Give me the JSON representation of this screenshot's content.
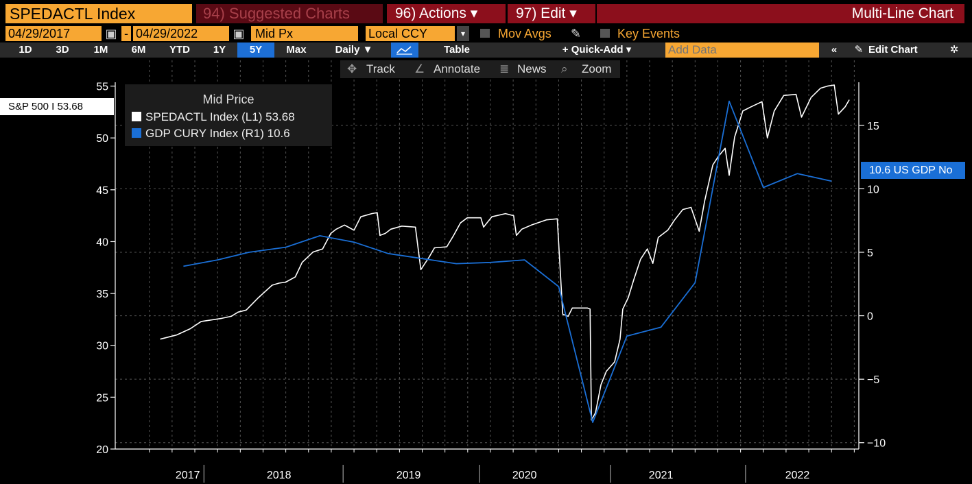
{
  "toolbar": {
    "ticker": "SPEDACTL Index",
    "suggested": "94) Suggested Charts",
    "actions": "96) Actions ▾",
    "edit": "97) Edit ▾",
    "title": "Multi-Line Chart"
  },
  "controls": {
    "start_date": "04/29/2017",
    "end_date": "04/29/2022",
    "dash": "-",
    "field": "Mid Px",
    "currency": "Local CCY",
    "mov_avgs": "Mov Avgs",
    "key_events": "Key Events"
  },
  "ranges": {
    "items": [
      "1D",
      "3D",
      "1M",
      "6M",
      "YTD",
      "1Y",
      "5Y",
      "Max"
    ],
    "selected": "5Y",
    "frequency": "Daily ▼",
    "table": "Table",
    "quick_add": "+ Quick-Add ▾",
    "add_data_placeholder": "Add Data",
    "edit_chart": "Edit Chart"
  },
  "tools": {
    "track": "Track",
    "annotate": "Annotate",
    "news": "News",
    "zoom": "Zoom"
  },
  "legend": {
    "title": "Mid Price",
    "s1": "SPEDACTL Index  (L1)  53.68",
    "s2": "GDP CURY Index  (R1)  10.6"
  },
  "tags": {
    "left": "S&P 500 I 53.68",
    "right": "10.6 US GDP No"
  },
  "chart_data": {
    "type": "line",
    "title": "",
    "x_labels": [
      "2017",
      "2018",
      "2019",
      "2020",
      "2021",
      "2022"
    ],
    "y_left": {
      "ticks": [
        20,
        25,
        30,
        35,
        40,
        45,
        50,
        55
      ],
      "range": [
        20,
        55.5
      ]
    },
    "y_right": {
      "ticks": [
        -10,
        -5,
        0,
        5,
        10,
        15
      ],
      "range": [
        -10.5,
        18.5
      ]
    },
    "series": [
      {
        "name": "SPEDACTL Index (L1)",
        "axis": "left",
        "color": "#ffffff",
        "points": [
          [
            2017.33,
            30.6
          ],
          [
            2017.45,
            31.0
          ],
          [
            2017.55,
            31.6
          ],
          [
            2017.63,
            32.3
          ],
          [
            2017.78,
            32.6
          ],
          [
            2017.85,
            32.8
          ],
          [
            2017.9,
            33.2
          ],
          [
            2017.96,
            33.4
          ],
          [
            2018.05,
            34.6
          ],
          [
            2018.15,
            35.8
          ],
          [
            2018.2,
            36.0
          ],
          [
            2018.25,
            36.1
          ],
          [
            2018.32,
            36.6
          ],
          [
            2018.37,
            38.0
          ],
          [
            2018.45,
            39.0
          ],
          [
            2018.52,
            39.3
          ],
          [
            2018.58,
            40.8
          ],
          [
            2018.62,
            41.2
          ],
          [
            2018.68,
            41.6
          ],
          [
            2018.75,
            41.1
          ],
          [
            2018.8,
            42.4
          ],
          [
            2018.88,
            42.7
          ],
          [
            2018.92,
            42.8
          ],
          [
            2018.94,
            40.6
          ],
          [
            2018.98,
            40.8
          ],
          [
            2019.02,
            41.2
          ],
          [
            2019.1,
            41.5
          ],
          [
            2019.2,
            41.4
          ],
          [
            2019.24,
            37.3
          ],
          [
            2019.3,
            38.5
          ],
          [
            2019.34,
            39.4
          ],
          [
            2019.43,
            39.5
          ],
          [
            2019.48,
            40.6
          ],
          [
            2019.53,
            41.8
          ],
          [
            2019.58,
            42.3
          ],
          [
            2019.68,
            42.3
          ],
          [
            2019.7,
            41.4
          ],
          [
            2019.76,
            42.4
          ],
          [
            2019.86,
            42.7
          ],
          [
            2019.92,
            42.5
          ],
          [
            2019.94,
            40.6
          ],
          [
            2019.98,
            41.2
          ],
          [
            2020.05,
            41.6
          ],
          [
            2020.16,
            42.1
          ],
          [
            2020.24,
            42.2
          ],
          [
            2020.28,
            33.0
          ],
          [
            2020.32,
            32.8
          ],
          [
            2020.35,
            33.6
          ],
          [
            2020.46,
            33.6
          ],
          [
            2020.48,
            33.5
          ],
          [
            2020.49,
            22.8
          ],
          [
            2020.52,
            23.5
          ],
          [
            2020.56,
            26.2
          ],
          [
            2020.6,
            27.5
          ],
          [
            2020.66,
            28.4
          ],
          [
            2020.7,
            30.6
          ],
          [
            2020.72,
            33.5
          ],
          [
            2020.76,
            34.6
          ],
          [
            2020.8,
            36.3
          ],
          [
            2020.85,
            38.3
          ],
          [
            2020.9,
            39.3
          ],
          [
            2020.94,
            37.9
          ],
          [
            2020.98,
            40.4
          ],
          [
            2021.05,
            41.1
          ],
          [
            2021.1,
            42.1
          ],
          [
            2021.16,
            43.1
          ],
          [
            2021.22,
            43.3
          ],
          [
            2021.28,
            41.0
          ],
          [
            2021.32,
            43.9
          ],
          [
            2021.38,
            47.4
          ],
          [
            2021.42,
            48.2
          ],
          [
            2021.47,
            49.0
          ],
          [
            2021.5,
            46.4
          ],
          [
            2021.54,
            50.1
          ],
          [
            2021.6,
            52.6
          ],
          [
            2021.66,
            53.0
          ],
          [
            2021.74,
            53.5
          ],
          [
            2021.78,
            50.0
          ],
          [
            2021.83,
            52.6
          ],
          [
            2021.9,
            54.1
          ],
          [
            2021.99,
            54.2
          ],
          [
            2022.03,
            52.0
          ],
          [
            2022.1,
            53.9
          ],
          [
            2022.17,
            54.8
          ],
          [
            2022.22,
            55.0
          ],
          [
            2022.27,
            55.1
          ],
          [
            2022.3,
            52.3
          ],
          [
            2022.35,
            53.0
          ],
          [
            2022.38,
            53.68
          ]
        ]
      },
      {
        "name": "GDP CURY Index (R1)",
        "axis": "right",
        "color": "#1a6fd6",
        "points": [
          [
            2017.5,
            3.9
          ],
          [
            2017.75,
            4.4
          ],
          [
            2017.98,
            5.0
          ],
          [
            2018.25,
            5.4
          ],
          [
            2018.5,
            6.3
          ],
          [
            2018.75,
            5.8
          ],
          [
            2019.0,
            4.9
          ],
          [
            2019.25,
            4.5
          ],
          [
            2019.5,
            4.1
          ],
          [
            2019.75,
            4.2
          ],
          [
            2020.0,
            4.4
          ],
          [
            2020.25,
            2.3
          ],
          [
            2020.5,
            -8.4
          ],
          [
            2020.75,
            -1.6
          ],
          [
            2021.0,
            -0.9
          ],
          [
            2021.25,
            2.6
          ],
          [
            2021.5,
            16.9
          ],
          [
            2021.75,
            10.1
          ],
          [
            2022.0,
            11.2
          ],
          [
            2022.25,
            10.6
          ]
        ]
      }
    ]
  }
}
